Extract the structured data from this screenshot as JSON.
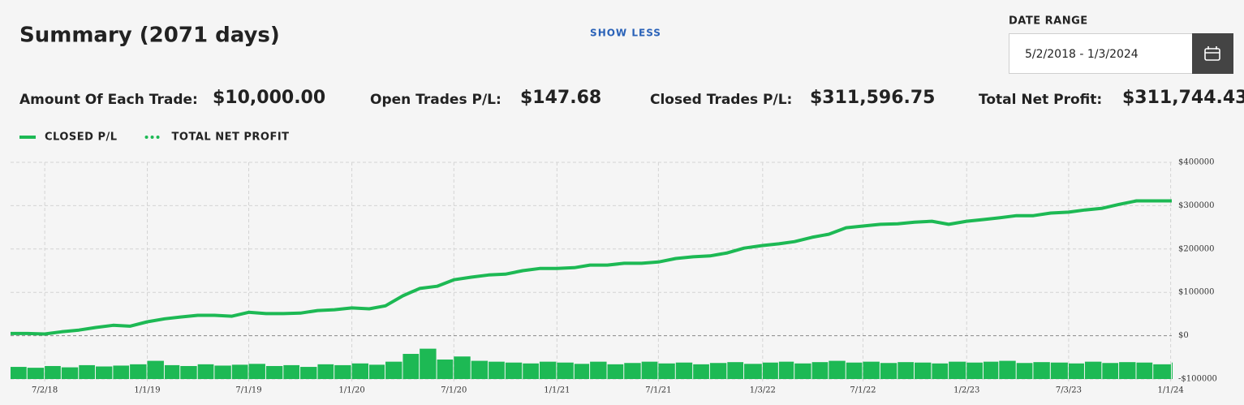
{
  "header": {
    "title": "Summary (2071 days)",
    "toggle": "SHOW LESS",
    "date_range_label": "DATE RANGE",
    "date_range_value": "5/2/2018 - 1/3/2024"
  },
  "stats": [
    {
      "label": "Amount Of Each Trade:",
      "value": "$10,000.00"
    },
    {
      "label": "Open Trades P/L:",
      "value": "$147.68"
    },
    {
      "label": "Closed Trades P/L:",
      "value": "$311,596.75"
    },
    {
      "label": "Total Net Profit:",
      "value": "$311,744.43"
    }
  ],
  "chart_data": {
    "type": "line",
    "xlim": [
      "2018-05-02",
      "2024-01-03"
    ],
    "xticks": [
      {
        "value": "2018-07-02",
        "label": "7/2/18"
      },
      {
        "value": "2019-01-01",
        "label": "1/1/19"
      },
      {
        "value": "2019-07-01",
        "label": "7/1/19"
      },
      {
        "value": "2020-01-01",
        "label": "1/1/20"
      },
      {
        "value": "2020-07-01",
        "label": "7/1/20"
      },
      {
        "value": "2021-01-01",
        "label": "1/1/21"
      },
      {
        "value": "2021-07-01",
        "label": "7/1/21"
      },
      {
        "value": "2022-01-03",
        "label": "1/3/22"
      },
      {
        "value": "2022-07-01",
        "label": "7/1/22"
      },
      {
        "value": "2023-01-02",
        "label": "1/2/23"
      },
      {
        "value": "2023-07-03",
        "label": "7/3/23"
      },
      {
        "value": "2024-01-01",
        "label": "1/1/24"
      }
    ],
    "ylim": [
      -100000,
      400000
    ],
    "yticks": [
      {
        "value": 400000,
        "label": "$400000"
      },
      {
        "value": 300000,
        "label": "$300000"
      },
      {
        "value": 200000,
        "label": "$200000"
      },
      {
        "value": 100000,
        "label": "$100000"
      },
      {
        "value": 0,
        "label": "$0"
      },
      {
        "value": -100000,
        "label": "-$100000"
      }
    ],
    "grid": true,
    "x": [
      "2018-05-02",
      "2018-06-01",
      "2018-07-02",
      "2018-08-01",
      "2018-09-01",
      "2018-10-01",
      "2018-11-01",
      "2018-12-01",
      "2019-01-01",
      "2019-02-01",
      "2019-03-01",
      "2019-04-01",
      "2019-05-01",
      "2019-06-01",
      "2019-07-01",
      "2019-08-01",
      "2019-09-01",
      "2019-10-01",
      "2019-11-01",
      "2019-12-01",
      "2020-01-01",
      "2020-02-01",
      "2020-03-01",
      "2020-04-01",
      "2020-05-01",
      "2020-06-01",
      "2020-07-01",
      "2020-08-01",
      "2020-09-01",
      "2020-10-01",
      "2020-11-01",
      "2020-12-01",
      "2021-01-01",
      "2021-02-01",
      "2021-03-01",
      "2021-04-01",
      "2021-05-01",
      "2021-06-01",
      "2021-07-01",
      "2021-08-01",
      "2021-09-01",
      "2021-10-01",
      "2021-11-01",
      "2021-12-01",
      "2022-01-03",
      "2022-02-01",
      "2022-03-01",
      "2022-04-01",
      "2022-05-01",
      "2022-06-01",
      "2022-07-01",
      "2022-08-01",
      "2022-09-01",
      "2022-10-01",
      "2022-11-01",
      "2022-12-01",
      "2023-01-02",
      "2023-02-01",
      "2023-03-01",
      "2023-04-01",
      "2023-05-01",
      "2023-06-01",
      "2023-07-03",
      "2023-08-01",
      "2023-09-01",
      "2023-10-01",
      "2023-11-01",
      "2023-12-01",
      "2024-01-03"
    ],
    "series": [
      {
        "name": "CLOSED P/L",
        "color": "#1db954",
        "style": "solid",
        "values": [
          5000,
          5000,
          4000,
          9000,
          13000,
          19000,
          24000,
          22000,
          32000,
          39000,
          43000,
          47000,
          47000,
          45000,
          54000,
          51000,
          51000,
          52000,
          58000,
          60000,
          64000,
          62000,
          69000,
          92000,
          109000,
          114000,
          129000,
          135000,
          140000,
          142000,
          150000,
          155000,
          155000,
          157000,
          163000,
          163000,
          167000,
          167000,
          170000,
          178000,
          182000,
          184000,
          191000,
          202000,
          208000,
          212000,
          217000,
          227000,
          234000,
          249000,
          253000,
          257000,
          258000,
          262000,
          264000,
          257000,
          264000,
          268000,
          272000,
          277000,
          277000,
          283000,
          285000,
          290000,
          294000,
          303000,
          311000,
          311000,
          311000
        ]
      },
      {
        "name": "TOTAL NET PROFIT",
        "color": "#1db954",
        "style": "dotted",
        "values": [
          5000,
          5000,
          4000,
          9000,
          13000,
          19000,
          24000,
          22000,
          32000,
          39000,
          43000,
          47000,
          47000,
          45000,
          54000,
          51000,
          51000,
          52000,
          58000,
          60000,
          64000,
          62000,
          69000,
          92000,
          109000,
          114000,
          129000,
          135000,
          140000,
          142000,
          150000,
          155000,
          155000,
          157000,
          163000,
          163000,
          167000,
          167000,
          170000,
          178000,
          182000,
          184000,
          191000,
          202000,
          208000,
          212000,
          217000,
          227000,
          234000,
          249000,
          253000,
          257000,
          258000,
          262000,
          264000,
          257000,
          264000,
          268000,
          272000,
          277000,
          277000,
          283000,
          285000,
          290000,
          294000,
          303000,
          311000,
          311000,
          311744
        ]
      }
    ],
    "bars": {
      "color": "#1db954",
      "values": [
        -72000,
        -74000,
        -70000,
        -73000,
        -68000,
        -71000,
        -69000,
        -66000,
        -58000,
        -68000,
        -70000,
        -66000,
        -69000,
        -67000,
        -65000,
        -70000,
        -68000,
        -72000,
        -66000,
        -68000,
        -64000,
        -67000,
        -60000,
        -42000,
        -30000,
        -55000,
        -48000,
        -58000,
        -60000,
        -62000,
        -64000,
        -60000,
        -62000,
        -65000,
        -60000,
        -66000,
        -63000,
        -60000,
        -64000,
        -62000,
        -66000,
        -63000,
        -61000,
        -65000,
        -62000,
        -60000,
        -64000,
        -61000,
        -58000,
        -62000,
        -60000,
        -63000,
        -61000,
        -62000,
        -64000,
        -60000,
        -62000,
        -60000,
        -58000,
        -63000,
        -61000,
        -62000,
        -64000,
        -60000,
        -63000,
        -61000,
        -62000,
        -66000,
        -62000
      ]
    }
  }
}
